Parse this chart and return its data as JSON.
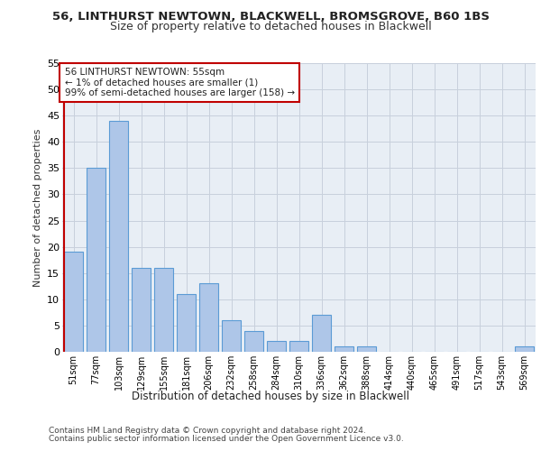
{
  "title1": "56, LINTHURST NEWTOWN, BLACKWELL, BROMSGROVE, B60 1BS",
  "title2": "Size of property relative to detached houses in Blackwell",
  "xlabel": "Distribution of detached houses by size in Blackwell",
  "ylabel": "Number of detached properties",
  "categories": [
    "51sqm",
    "77sqm",
    "103sqm",
    "129sqm",
    "155sqm",
    "181sqm",
    "206sqm",
    "232sqm",
    "258sqm",
    "284sqm",
    "310sqm",
    "336sqm",
    "362sqm",
    "388sqm",
    "414sqm",
    "440sqm",
    "465sqm",
    "491sqm",
    "517sqm",
    "543sqm",
    "569sqm"
  ],
  "values": [
    19,
    35,
    44,
    16,
    16,
    11,
    13,
    6,
    4,
    2,
    2,
    7,
    1,
    1,
    0,
    0,
    0,
    0,
    0,
    0,
    1
  ],
  "bar_color": "#aec6e8",
  "bar_edge_color": "#5b9bd5",
  "highlight_color": "#c00000",
  "annotation_text": "56 LINTHURST NEWTOWN: 55sqm\n← 1% of detached houses are smaller (1)\n99% of semi-detached houses are larger (158) →",
  "annotation_box_color": "#ffffff",
  "annotation_box_edge_color": "#c00000",
  "grid_color": "#c8d0dc",
  "background_color": "#e8eef5",
  "ylim": [
    0,
    55
  ],
  "yticks": [
    0,
    5,
    10,
    15,
    20,
    25,
    30,
    35,
    40,
    45,
    50,
    55
  ],
  "footer1": "Contains HM Land Registry data © Crown copyright and database right 2024.",
  "footer2": "Contains public sector information licensed under the Open Government Licence v3.0."
}
